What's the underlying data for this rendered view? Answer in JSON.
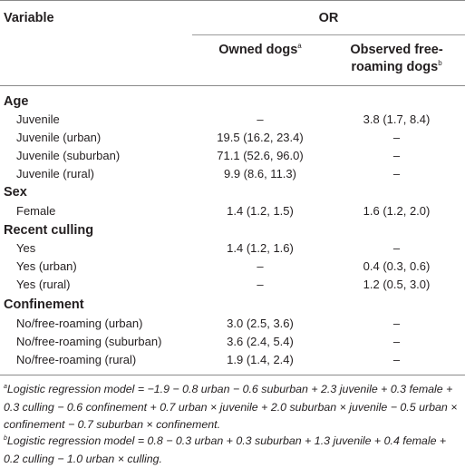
{
  "header": {
    "variable": "Variable",
    "or": "OR",
    "owned": "Owned dogs",
    "owned_sup": "a",
    "observed_line1": "Observed free-",
    "observed_line2": "roaming dogs",
    "observed_sup": "b"
  },
  "sections": [
    {
      "title": "Age",
      "rows": [
        {
          "label": "Juvenile",
          "owned": "–",
          "observed": "3.8 (1.7, 8.4)"
        },
        {
          "label": "Juvenile (urban)",
          "owned": "19.5 (16.2, 23.4)",
          "observed": "–"
        },
        {
          "label": "Juvenile (suburban)",
          "owned": "71.1 (52.6, 96.0)",
          "observed": "–"
        },
        {
          "label": "Juvenile (rural)",
          "owned": "9.9 (8.6, 11.3)",
          "observed": "–"
        }
      ]
    },
    {
      "title": "Sex",
      "rows": [
        {
          "label": "Female",
          "owned": "1.4 (1.2, 1.5)",
          "observed": "1.6 (1.2, 2.0)"
        }
      ]
    },
    {
      "title": "Recent culling",
      "rows": [
        {
          "label": "Yes",
          "owned": "1.4 (1.2, 1.6)",
          "observed": "–"
        },
        {
          "label": "Yes (urban)",
          "owned": "–",
          "observed": "0.4 (0.3, 0.6)"
        },
        {
          "label": "Yes (rural)",
          "owned": "–",
          "observed": "1.2 (0.5, 3.0)"
        }
      ]
    },
    {
      "title": "Confinement",
      "rows": [
        {
          "label": "No/free-roaming (urban)",
          "owned": "3.0 (2.5, 3.6)",
          "observed": "–"
        },
        {
          "label": "No/free-roaming (suburban)",
          "owned": "3.6 (2.4, 5.4)",
          "observed": "–"
        },
        {
          "label": "No/free-roaming (rural)",
          "owned": "1.9 (1.4, 2.4)",
          "observed": "–"
        }
      ]
    }
  ],
  "footnotes": [
    {
      "mark": "a",
      "text": "Logistic regression model = −1.9 − 0.8 urban − 0.6 suburban + 2.3 juvenile + 0.3 female + 0.3 culling − 0.6 confinement + 0.7 urban × juvenile + 2.0 suburban × juvenile − 0.5 urban × confinement − 0.7 suburban × confinement."
    },
    {
      "mark": "b",
      "text": "Logistic regression model = 0.8 − 0.3 urban + 0.3 suburban + 1.3 juvenile + 0.4 female + 0.2 culling − 1.0 urban × culling."
    }
  ]
}
